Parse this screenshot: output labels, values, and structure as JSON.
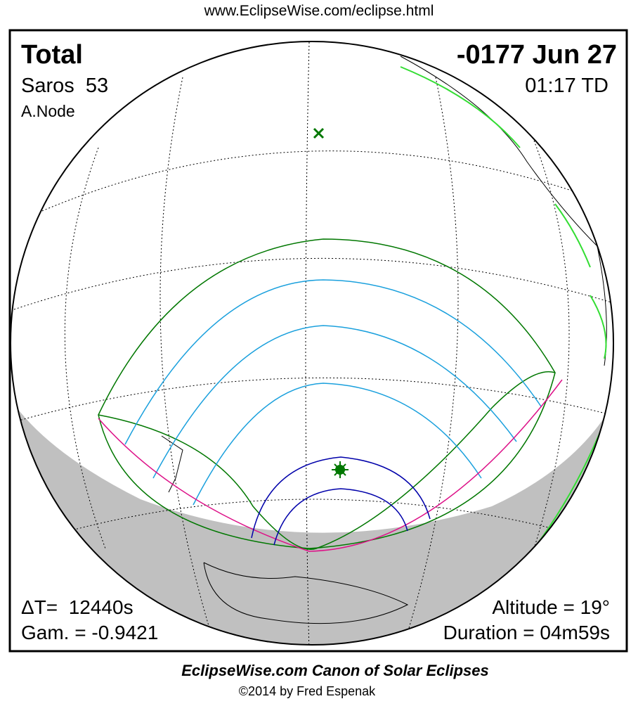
{
  "header": {
    "url": "www.EclipseWise.com/eclipse.html"
  },
  "panel": {
    "eclipse_type": "Total",
    "date": "-0177 Jun 27",
    "saros": "Saros  53",
    "time": "01:17 TD",
    "node": "A.Node",
    "delta_t": "ΔT=  12440s",
    "gamma": "Gam. = -0.9421",
    "altitude": "Altitude = 19°",
    "duration": "Duration = 04m59s"
  },
  "footer": {
    "title": "EclipseWise.com Canon of Solar Eclipses",
    "copyright": "©2014 by Fred Espenak"
  }
}
